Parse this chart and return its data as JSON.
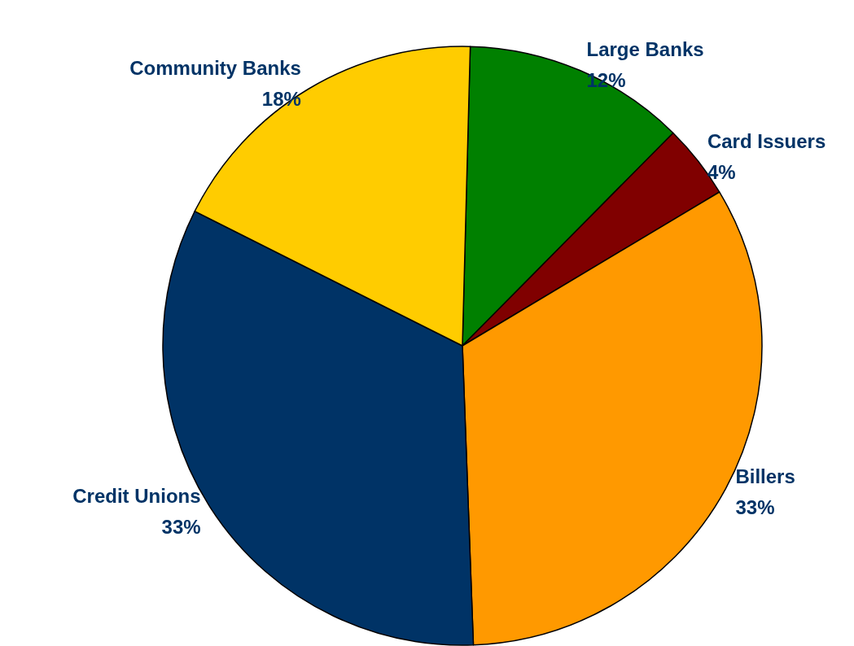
{
  "chart_data": {
    "type": "pie",
    "categories": [
      "Large Banks",
      "Card Issuers",
      "Billers",
      "Credit Unions",
      "Community Banks"
    ],
    "values": [
      12,
      4,
      33,
      33,
      18
    ],
    "value_labels": [
      "12%",
      "4%",
      "33%",
      "33%",
      "18%"
    ],
    "colors": [
      "#008000",
      "#800000",
      "#ff9900",
      "#003366",
      "#ffcc00"
    ],
    "legend": false
  }
}
